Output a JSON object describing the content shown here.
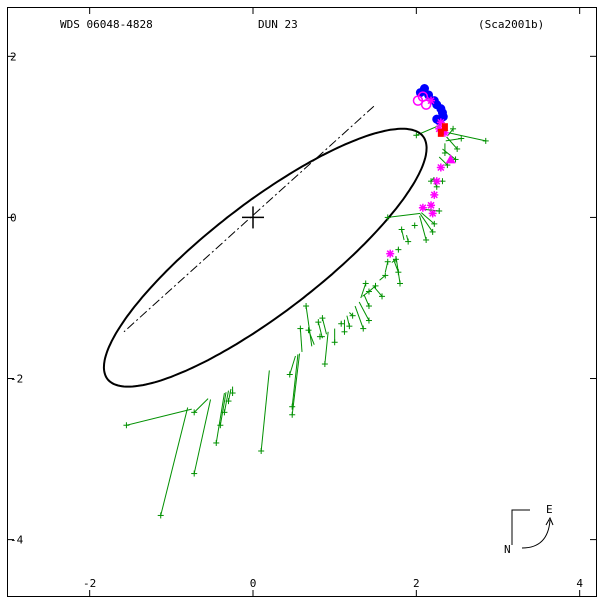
{
  "header": {
    "wds_id": "WDS 06048-4828",
    "discoverer": "DUN  23",
    "reference": "(Sca2001b)"
  },
  "compass": {
    "east_label": "E",
    "north_label": "N"
  },
  "colors": {
    "frame": "#000000",
    "orbit": "#000000",
    "micrometer": "#009000",
    "interferometric": "#0000ff",
    "speckle": "#ff00ff",
    "photographic": "#ff00ff",
    "recent": "#ff0000"
  },
  "chart_data": {
    "type": "scatter",
    "title": "WDS 06048-4828",
    "xlim": [
      -3.0,
      4.2
    ],
    "ylim": [
      -4.7,
      2.6
    ],
    "x_ticks": [
      -2,
      0,
      2,
      4
    ],
    "y_ticks": [
      2,
      0,
      -2,
      -4
    ],
    "x_tick_labels": [
      "-2",
      "0",
      "2",
      "4"
    ],
    "y_tick_labels": [
      "2",
      "0",
      "-2",
      "-4"
    ],
    "grid": false,
    "orbit": {
      "center": [
        0.15,
        -0.5
      ],
      "semi_axes": [
        2.45,
        0.68
      ],
      "rotation_deg": 38,
      "line_of_nodes": [
        [
          1.48,
          1.38
        ],
        [
          -1.58,
          -1.42
        ]
      ]
    },
    "primary_star": [
      0,
      0
    ],
    "series": [
      {
        "marker": "plus-with-residual",
        "points": [
          {
            "obs": [
              -1.55,
              -2.58
            ],
            "calc": [
              -0.75,
              -2.38
            ]
          },
          {
            "obs": [
              -1.13,
              -3.7
            ],
            "calc": [
              -0.8,
              -2.36
            ]
          },
          {
            "obs": [
              -0.72,
              -3.18
            ],
            "calc": [
              -0.52,
              -2.26
            ]
          },
          {
            "obs": [
              -0.72,
              -2.42
            ],
            "calc": [
              -0.55,
              -2.25
            ]
          },
          {
            "obs": [
              -0.45,
              -2.8
            ],
            "calc": [
              -0.35,
              -2.18
            ]
          },
          {
            "obs": [
              -0.4,
              -2.58
            ],
            "calc": [
              -0.33,
              -2.17
            ]
          },
          {
            "obs": [
              -0.35,
              -2.42
            ],
            "calc": [
              -0.3,
              -2.15
            ]
          },
          {
            "obs": [
              -0.3,
              -2.28
            ],
            "calc": [
              -0.27,
              -2.13
            ]
          },
          {
            "obs": [
              -0.25,
              -2.18
            ],
            "calc": [
              -0.25,
              -2.1
            ]
          },
          {
            "obs": [
              0.1,
              -2.9
            ],
            "calc": [
              0.2,
              -1.9
            ]
          },
          {
            "obs": [
              0.45,
              -1.95
            ],
            "calc": [
              0.52,
              -1.72
            ]
          },
          {
            "obs": [
              0.48,
              -2.35
            ],
            "calc": [
              0.55,
              -1.7
            ]
          },
          {
            "obs": [
              0.48,
              -2.45
            ],
            "calc": [
              0.57,
              -1.69
            ]
          },
          {
            "obs": [
              0.58,
              -1.38
            ],
            "calc": [
              0.6,
              -1.67
            ]
          },
          {
            "obs": [
              0.65,
              -1.1
            ],
            "calc": [
              0.72,
              -1.6
            ]
          },
          {
            "obs": [
              0.68,
              -1.4
            ],
            "calc": [
              0.75,
              -1.58
            ]
          },
          {
            "obs": [
              0.8,
              -1.3
            ],
            "calc": [
              0.85,
              -1.5
            ]
          },
          {
            "obs": [
              0.82,
              -1.48
            ],
            "calc": [
              0.88,
              -1.48
            ]
          },
          {
            "obs": [
              0.85,
              -1.25
            ],
            "calc": [
              0.9,
              -1.45
            ]
          },
          {
            "obs": [
              0.88,
              -1.82
            ],
            "calc": [
              0.92,
              -1.42
            ]
          },
          {
            "obs": [
              1.0,
              -1.55
            ],
            "calc": [
              1.0,
              -1.38
            ]
          },
          {
            "obs": [
              1.08,
              -1.32
            ],
            "calc": [
              1.08,
              -1.3
            ]
          },
          {
            "obs": [
              1.12,
              -1.42
            ],
            "calc": [
              1.12,
              -1.27
            ]
          },
          {
            "obs": [
              1.18,
              -1.35
            ],
            "calc": [
              1.15,
              -1.22
            ]
          },
          {
            "obs": [
              1.22,
              -1.22
            ],
            "calc": [
              1.18,
              -1.18
            ]
          },
          {
            "obs": [
              1.35,
              -1.38
            ],
            "calc": [
              1.25,
              -1.1
            ]
          },
          {
            "obs": [
              1.42,
              -1.28
            ],
            "calc": [
              1.3,
              -1.05
            ]
          },
          {
            "obs": [
              1.38,
              -0.82
            ],
            "calc": [
              1.32,
              -1.0
            ]
          },
          {
            "obs": [
              1.42,
              -0.92
            ],
            "calc": [
              1.34,
              -0.98
            ]
          },
          {
            "obs": [
              1.42,
              -1.1
            ],
            "calc": [
              1.36,
              -0.96
            ]
          },
          {
            "obs": [
              1.5,
              -0.85
            ],
            "calc": [
              1.42,
              -0.92
            ]
          },
          {
            "obs": [
              1.58,
              -0.98
            ],
            "calc": [
              1.48,
              -0.86
            ]
          },
          {
            "obs": [
              1.62,
              -0.72
            ],
            "calc": [
              1.55,
              -0.78
            ]
          },
          {
            "obs": [
              1.65,
              -0.55
            ],
            "calc": [
              1.62,
              -0.68
            ]
          },
          {
            "obs": [
              1.75,
              -0.52
            ],
            "calc": [
              1.7,
              -0.56
            ]
          },
          {
            "obs": [
              1.78,
              -0.68
            ],
            "calc": [
              1.72,
              -0.52
            ]
          },
          {
            "obs": [
              1.8,
              -0.82
            ],
            "calc": [
              1.75,
              -0.48
            ]
          },
          {
            "obs": [
              1.78,
              -0.4
            ],
            "calc": [
              1.78,
              -0.38
            ]
          },
          {
            "obs": [
              1.82,
              -0.15
            ],
            "calc": [
              1.85,
              -0.28
            ]
          },
          {
            "obs": [
              1.9,
              -0.3
            ],
            "calc": [
              1.88,
              -0.22
            ]
          },
          {
            "obs": [
              1.98,
              -0.1
            ],
            "calc": [
              1.95,
              -0.1
            ]
          },
          {
            "obs": [
              1.65,
              0.0
            ],
            "calc": [
              2.05,
              0.05
            ]
          },
          {
            "obs": [
              2.2,
              -0.18
            ],
            "calc": [
              2.05,
              0.04
            ]
          },
          {
            "obs": [
              2.12,
              -0.28
            ],
            "calc": [
              2.04,
              0.02
            ]
          },
          {
            "obs": [
              2.22,
              -0.08
            ],
            "calc": [
              2.06,
              0.06
            ]
          },
          {
            "obs": [
              2.28,
              0.08
            ],
            "calc": [
              2.1,
              0.1
            ]
          },
          {
            "obs": [
              2.32,
              0.45
            ],
            "calc": [
              2.2,
              0.45
            ]
          },
          {
            "obs": [
              2.18,
              0.45
            ],
            "calc": [
              2.22,
              0.5
            ]
          },
          {
            "obs": [
              2.25,
              0.38
            ],
            "calc": [
              2.21,
              0.48
            ]
          },
          {
            "obs": [
              2.38,
              0.65
            ],
            "calc": [
              2.28,
              0.75
            ]
          },
          {
            "obs": [
              2.48,
              0.72
            ],
            "calc": [
              2.32,
              0.85
            ]
          },
          {
            "obs": [
              2.55,
              0.98
            ],
            "calc": [
              2.36,
              0.95
            ]
          },
          {
            "obs": [
              2.85,
              0.95
            ],
            "calc": [
              2.4,
              1.05
            ]
          },
          {
            "obs": [
              2.35,
              0.8
            ],
            "calc": [
              2.35,
              0.92
            ]
          },
          {
            "obs": [
              2.5,
              0.85
            ],
            "calc": [
              2.37,
              1.0
            ]
          },
          {
            "obs": [
              2.45,
              1.1
            ],
            "calc": [
              2.39,
              1.02
            ]
          },
          {
            "obs": [
              2.0,
              1.02
            ],
            "calc": [
              2.3,
              1.15
            ]
          }
        ]
      },
      {
        "marker": "filled-circle",
        "points": [
          [
            2.05,
            1.55
          ],
          [
            2.1,
            1.6
          ],
          [
            2.15,
            1.52
          ],
          [
            2.22,
            1.45
          ],
          [
            2.25,
            1.4
          ],
          [
            2.3,
            1.35
          ],
          [
            2.32,
            1.3
          ],
          [
            2.33,
            1.25
          ],
          [
            2.28,
            1.2
          ],
          [
            2.25,
            1.22
          ]
        ]
      },
      {
        "marker": "open-circle",
        "points": [
          [
            2.02,
            1.45
          ],
          [
            2.08,
            1.5
          ],
          [
            2.12,
            1.4
          ]
        ]
      },
      {
        "marker": "asterisk",
        "points": [
          [
            2.18,
            1.45
          ],
          [
            2.3,
            1.18
          ],
          [
            2.35,
            1.05
          ],
          [
            2.28,
            1.1
          ],
          [
            2.22,
            0.28
          ],
          [
            2.18,
            0.15
          ],
          [
            2.2,
            0.05
          ],
          [
            2.08,
            0.12
          ],
          [
            2.3,
            0.62
          ],
          [
            1.68,
            -0.45
          ],
          [
            2.25,
            0.45
          ]
        ]
      },
      {
        "marker": "filled-triangle",
        "points": [
          [
            2.42,
            0.72
          ]
        ]
      },
      {
        "marker": "red-square",
        "points": [
          [
            2.35,
            1.12
          ],
          [
            2.3,
            1.05
          ]
        ]
      }
    ]
  }
}
